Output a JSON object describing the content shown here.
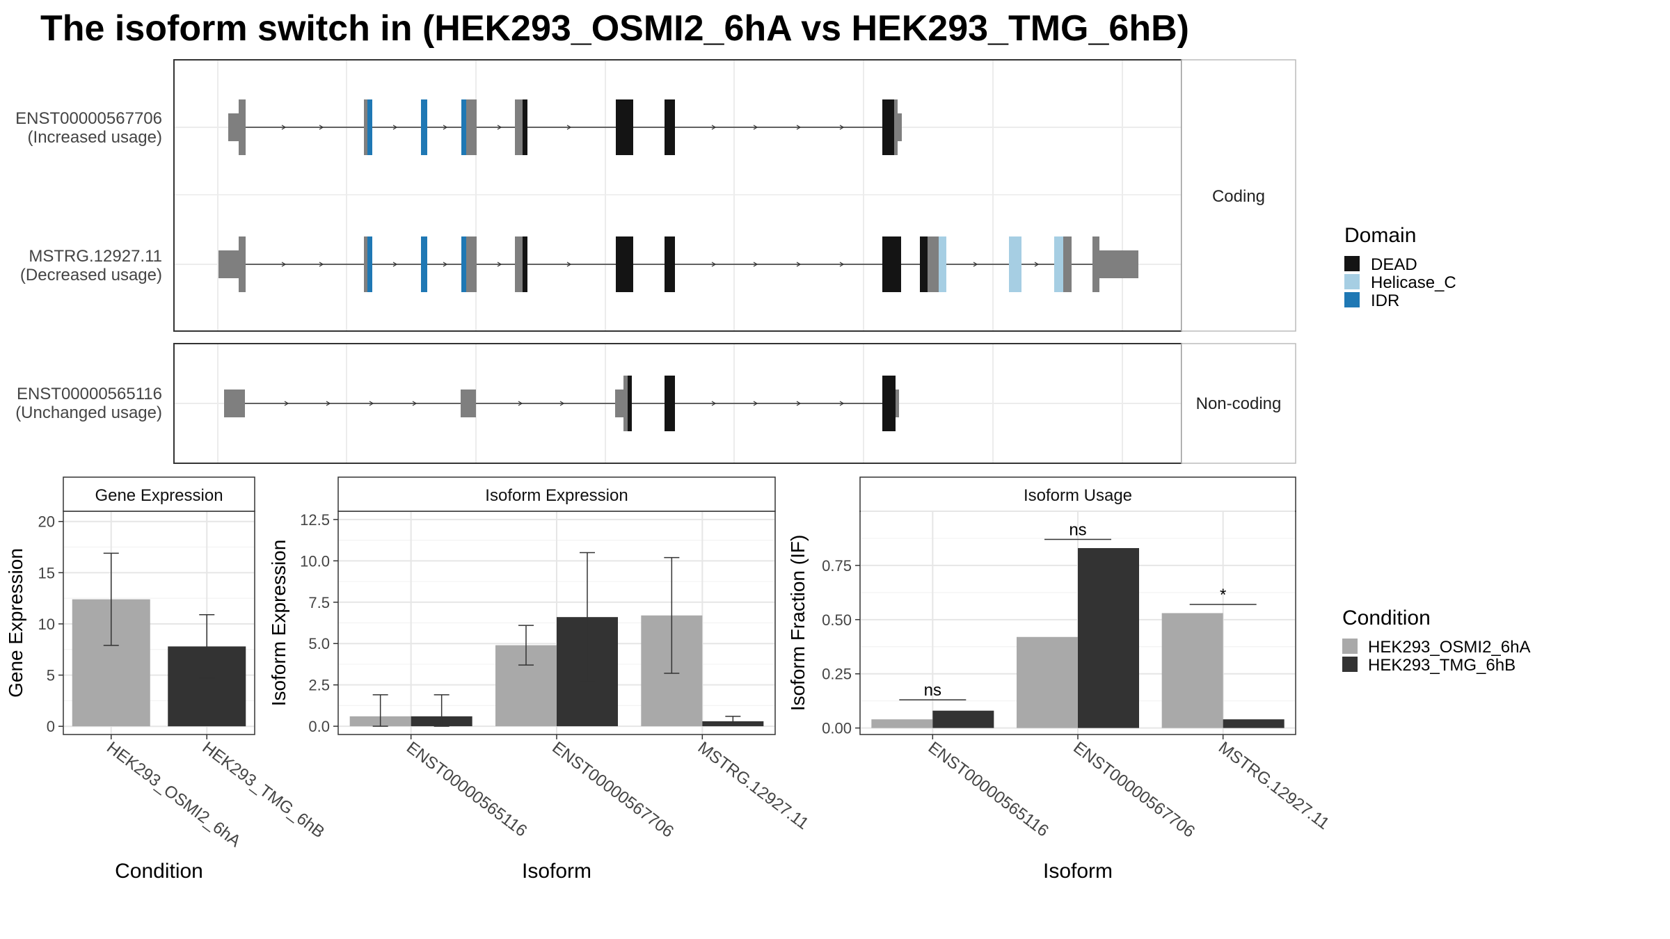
{
  "title": "The isoform switch in  (HEK293_OSMI2_6hA vs HEK293_TMG_6hB)",
  "colors": {
    "DEAD": "#141414",
    "Helicase_C": "#a6cee3",
    "IDR": "#1f78b4",
    "utr": "#7f7f7f",
    "cond_a": "#a9a9a9",
    "cond_b": "#333333"
  },
  "structure": {
    "coding_label": "Coding",
    "noncoding_label": "Non-coding",
    "isoforms": [
      {
        "id": "ENST00000567706",
        "usage": "(Increased usage)",
        "panel": "coding"
      },
      {
        "id": "MSTRG.12927.11",
        "usage": "(Decreased usage)",
        "panel": "coding"
      },
      {
        "id": "ENST00000565116",
        "usage": "(Unchanged usage)",
        "panel": "noncoding"
      }
    ]
  },
  "legend_domain": {
    "title": "Domain",
    "items": [
      {
        "label": "DEAD",
        "color": "#141414"
      },
      {
        "label": "Helicase_C",
        "color": "#a6cee3"
      },
      {
        "label": "IDR",
        "color": "#1f78b4"
      }
    ]
  },
  "legend_condition": {
    "title": "Condition",
    "items": [
      {
        "label": "HEK293_OSMI2_6hA",
        "color": "#a9a9a9"
      },
      {
        "label": "HEK293_TMG_6hB",
        "color": "#333333"
      }
    ]
  },
  "chart_data": [
    {
      "type": "bar",
      "title": "Gene Expression",
      "xlabel": "Condition",
      "ylabel": "Gene Expression",
      "categories": [
        "HEK293_OSMI2_6hA",
        "HEK293_TMG_6hB"
      ],
      "values": [
        12.4,
        7.8
      ],
      "error_low": [
        7.9,
        4.7
      ],
      "error_high": [
        16.9,
        10.9
      ],
      "ylim": [
        -0.8,
        21
      ],
      "yticks": [
        0,
        5,
        10,
        15,
        20
      ],
      "ytick_labels": [
        "0",
        "5",
        "10",
        "15",
        "20"
      ]
    },
    {
      "type": "bar",
      "title": "Isoform Expression",
      "xlabel": "Isoform",
      "ylabel": "Isoform Expression",
      "categories": [
        "ENST00000565116",
        "ENST00000567706",
        "MSTRG.12927.11"
      ],
      "series": [
        {
          "name": "HEK293_OSMI2_6hA",
          "values": [
            0.6,
            4.9,
            6.7
          ],
          "error_low": [
            0.0,
            3.7,
            3.2
          ],
          "error_high": [
            1.9,
            6.1,
            10.2
          ]
        },
        {
          "name": "HEK293_TMG_6hB",
          "values": [
            0.6,
            6.6,
            0.3
          ],
          "error_low": [
            0.0,
            2.7,
            0.1
          ],
          "error_high": [
            1.9,
            10.5,
            0.6
          ]
        }
      ],
      "ylim": [
        -0.5,
        13
      ],
      "yticks": [
        0,
        2.5,
        5,
        7.5,
        10,
        12.5
      ],
      "ytick_labels": [
        "0.0",
        "2.5",
        "5.0",
        "7.5",
        "10.0",
        "12.5"
      ]
    },
    {
      "type": "bar",
      "title": "Isoform Usage",
      "xlabel": "Isoform",
      "ylabel": "Isoform Fraction (IF)",
      "categories": [
        "ENST00000565116",
        "ENST00000567706",
        "MSTRG.12927.11"
      ],
      "series": [
        {
          "name": "HEK293_OSMI2_6hA",
          "values": [
            0.04,
            0.42,
            0.53
          ]
        },
        {
          "name": "HEK293_TMG_6hB",
          "values": [
            0.08,
            0.83,
            0.04
          ]
        }
      ],
      "significance": [
        {
          "category": "ENST00000565116",
          "label": "ns",
          "y": 0.13
        },
        {
          "category": "ENST00000567706",
          "label": "ns",
          "y": 0.87
        },
        {
          "category": "MSTRG.12927.11",
          "label": "*",
          "y": 0.57
        }
      ],
      "ylim": [
        -0.03,
        1.0
      ],
      "yticks": [
        0,
        0.25,
        0.5,
        0.75
      ],
      "ytick_labels": [
        "0.00",
        "0.25",
        "0.50",
        "0.75"
      ]
    }
  ]
}
